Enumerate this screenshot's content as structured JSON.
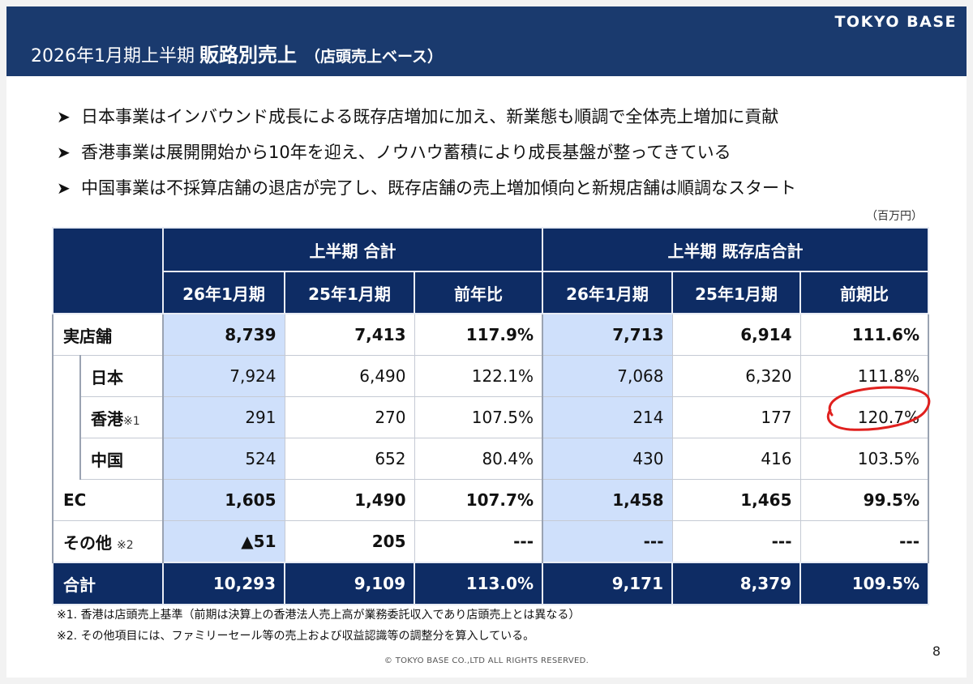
{
  "brand": "TOKYO BASE",
  "title": {
    "prefix": "2026年1月期上半期",
    "main": "販路別売上",
    "sub": "（店頭売上ベース）"
  },
  "bullets": [
    "日本事業はインバウンド成長による既存店増加に加え、新業態も順調で全体売上増加に貢献",
    "香港事業は展開開始から10年を迎え、ノウハウ蓄積により成長基盤が整ってきている",
    "中国事業は不採算店舗の退店が完了し、既存店舗の売上増加傾向と新規店舗は順調なスタート"
  ],
  "bullet_marker": "➤",
  "unit_label": "（百万円）",
  "table": {
    "group_headers": [
      "上半期 合計",
      "上半期 既存店合計"
    ],
    "column_headers": [
      "26年1月期",
      "25年1月期",
      "前年比",
      "26年1月期",
      "25年1月期",
      "前期比"
    ],
    "rows": {
      "physical": {
        "label": "実店舗",
        "values": [
          "8,739",
          "7,413",
          "117.9%",
          "7,713",
          "6,914",
          "111.6%"
        ]
      },
      "japan": {
        "label": "日本",
        "values": [
          "7,924",
          "6,490",
          "122.1%",
          "7,068",
          "6,320",
          "111.8%"
        ]
      },
      "hongkong": {
        "label": "香港",
        "note": "※1",
        "values": [
          "291",
          "270",
          "107.5%",
          "214",
          "177",
          "120.7%"
        ]
      },
      "china": {
        "label": "中国",
        "values": [
          "524",
          "652",
          "80.4%",
          "430",
          "416",
          "103.5%"
        ]
      },
      "ec": {
        "label": "EC",
        "values": [
          "1,605",
          "1,490",
          "107.7%",
          "1,458",
          "1,465",
          "99.5%"
        ]
      },
      "other": {
        "label": "その他",
        "note": "※2",
        "values": [
          "▲51",
          "205",
          "---",
          "---",
          "---",
          "---"
        ]
      },
      "total": {
        "label": "合計",
        "values": [
          "10,293",
          "9,109",
          "113.0%",
          "9,171",
          "8,379",
          "109.5%"
        ]
      }
    }
  },
  "notes": [
    "※1. 香港は店頭売上基準（前期は決算上の香港法人売上高が業務委託収入であり店頭売上とは異なる）",
    "※2. その他項目には、ファミリーセール等の売上および収益認識等の調整分を算入している。"
  ],
  "copyright": "© TOKYO BASE CO.,LTD  ALL RIGHTS RESERVED.",
  "page_number": "8",
  "colors": {
    "navy": "#0e2c64",
    "header": "#1a3a6e",
    "highlight": "#cfe0fb",
    "annotation": "#e0201e"
  }
}
